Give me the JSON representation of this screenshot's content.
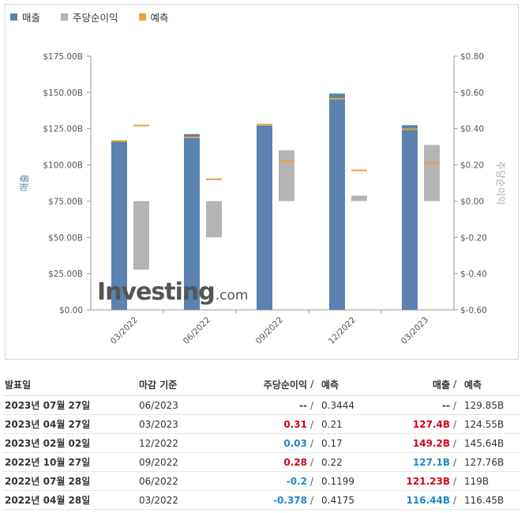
{
  "legend": {
    "revenue": "매출",
    "eps": "주당순이익",
    "forecast": "예측"
  },
  "colors": {
    "revenue": "#5b82b0",
    "eps": "#b4b4b4",
    "forecast": "#e8a13a",
    "positive": "#d0021b",
    "negative": "#1e88c7"
  },
  "watermark": {
    "main": "Investing",
    "suffix": ".com"
  },
  "chart_data": {
    "type": "bar",
    "categories": [
      "03/2022",
      "06/2022",
      "09/2022",
      "12/2022",
      "03/2023"
    ],
    "left_axis": {
      "label": "매출",
      "ylim": [
        0,
        175
      ],
      "ticks": [
        "$0.00",
        "$25.00B",
        "$50.00B",
        "$75.00B",
        "$100.00B",
        "$125.00B",
        "$150.00B",
        "$175.00B"
      ]
    },
    "right_axis": {
      "label": "주당순이익",
      "ylim": [
        -0.6,
        0.8
      ],
      "ticks": [
        "$-0.60",
        "$-0.40",
        "$-0.20",
        "$0.00",
        "$0.20",
        "$0.40",
        "$0.60",
        "$0.80"
      ]
    },
    "series": [
      {
        "name": "매출",
        "values": [
          116.44,
          121.23,
          127.1,
          149.2,
          127.4
        ]
      },
      {
        "name": "매출 예측",
        "values": [
          116.45,
          119,
          127.76,
          145.64,
          124.55
        ]
      },
      {
        "name": "주당순이익",
        "values": [
          -0.378,
          -0.2,
          0.28,
          0.03,
          0.31
        ]
      },
      {
        "name": "주당순이익 예측",
        "values": [
          0.4175,
          0.1199,
          0.22,
          0.17,
          0.21
        ]
      }
    ],
    "grid": false,
    "legend_position": "top-left"
  },
  "table": {
    "headers": {
      "date": "발표일",
      "period": "마감 기준",
      "eps": "주당순이익",
      "eps_sep": "/",
      "eps_forecast": "예측",
      "revenue": "매출",
      "revenue_sep": "/",
      "revenue_forecast": "예측"
    },
    "rows": [
      {
        "date": "2023년 07월 27일",
        "period": "06/2023",
        "eps": "--",
        "eps_sign": "none",
        "eps_forecast": "0.3444",
        "revenue": "--",
        "revenue_sign": "none",
        "revenue_forecast": "129.85B"
      },
      {
        "date": "2023년 04월 27일",
        "period": "03/2023",
        "eps": "0.31",
        "eps_sign": "pos",
        "eps_forecast": "0.21",
        "revenue": "127.4B",
        "revenue_sign": "pos",
        "revenue_forecast": "124.55B"
      },
      {
        "date": "2023년 02월 02일",
        "period": "12/2022",
        "eps": "0.03",
        "eps_sign": "neg",
        "eps_forecast": "0.17",
        "revenue": "149.2B",
        "revenue_sign": "pos",
        "revenue_forecast": "145.64B"
      },
      {
        "date": "2022년 10월 27일",
        "period": "09/2022",
        "eps": "0.28",
        "eps_sign": "pos",
        "eps_forecast": "0.22",
        "revenue": "127.1B",
        "revenue_sign": "neg",
        "revenue_forecast": "127.76B"
      },
      {
        "date": "2022년 07월 28일",
        "period": "06/2022",
        "eps": "-0.2",
        "eps_sign": "neg",
        "eps_forecast": "0.1199",
        "revenue": "121.23B",
        "revenue_sign": "pos",
        "revenue_forecast": "119B"
      },
      {
        "date": "2022년 04월 28일",
        "period": "03/2022",
        "eps": "-0.378",
        "eps_sign": "neg",
        "eps_forecast": "0.4175",
        "revenue": "116.44B",
        "revenue_sign": "neg",
        "revenue_forecast": "116.45B"
      }
    ]
  }
}
